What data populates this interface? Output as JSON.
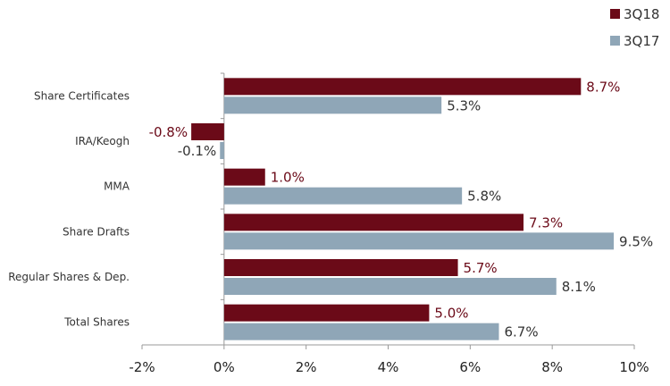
{
  "chart_data": {
    "type": "bar",
    "orientation": "horizontal",
    "title": "",
    "xlabel": "",
    "ylabel": "",
    "categories": [
      "Share Certificates",
      "IRA/Keogh",
      "MMA",
      "Share Drafts",
      "Regular Shares & Dep.",
      "Total Shares"
    ],
    "series": [
      {
        "name": "3Q18",
        "color": "#6b0a18",
        "values": [
          8.7,
          -0.8,
          1.0,
          7.3,
          5.7,
          5.0
        ],
        "labels": [
          "8.7%",
          "-0.8%",
          "1.0%",
          "7.3%",
          "5.7%",
          "5.0%"
        ]
      },
      {
        "name": "3Q17",
        "color": "#8fa6b7",
        "values": [
          5.3,
          -0.1,
          5.8,
          9.5,
          8.1,
          6.7
        ],
        "labels": [
          "5.3%",
          "-0.1%",
          "5.8%",
          "9.5%",
          "8.1%",
          "6.7%"
        ]
      }
    ],
    "xlim": [
      -2,
      10
    ],
    "xticks": [
      -2,
      0,
      2,
      4,
      6,
      8,
      10
    ],
    "xtick_labels": [
      "-2%",
      "0%",
      "2%",
      "4%",
      "6%",
      "8%",
      "10%"
    ],
    "grid": false,
    "legend_position": "top-right"
  }
}
